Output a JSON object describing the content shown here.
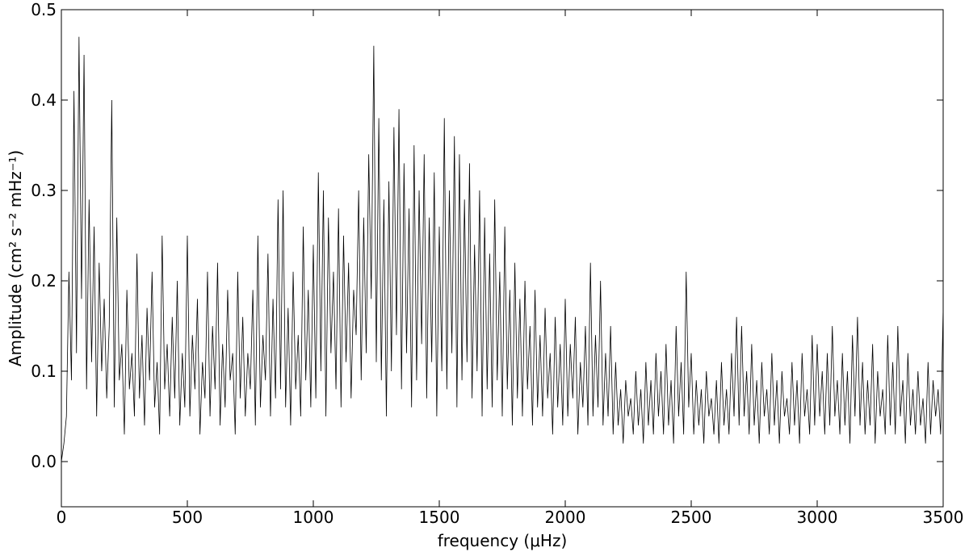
{
  "chart_data": {
    "type": "line",
    "xlabel": "frequency (μHz)",
    "ylabel": "Amplitude (cm² s⁻² mHz⁻¹)",
    "xlim": [
      0,
      3500
    ],
    "xticks": [
      0,
      500,
      1000,
      1500,
      2000,
      2500,
      3000,
      3500
    ],
    "ylim": [
      -0.05,
      0.5
    ],
    "yticks": [
      {
        "value": 0,
        "label": "0.0"
      },
      0.1,
      0.2,
      0.3,
      0.4,
      0.5
    ],
    "grid": false,
    "series": [
      {
        "color": "#000000",
        "x": [
          0,
          10,
          20,
          30,
          40,
          50,
          60,
          70,
          80,
          90,
          100,
          110,
          120,
          130,
          140,
          150,
          160,
          170,
          180,
          190,
          200,
          210,
          220,
          230,
          240,
          250,
          260,
          270,
          280,
          290,
          300,
          310,
          320,
          330,
          340,
          350,
          360,
          370,
          380,
          390,
          400,
          410,
          420,
          430,
          440,
          450,
          460,
          470,
          480,
          490,
          500,
          510,
          520,
          530,
          540,
          550,
          560,
          570,
          580,
          590,
          600,
          610,
          620,
          630,
          640,
          650,
          660,
          670,
          680,
          690,
          700,
          710,
          720,
          730,
          740,
          750,
          760,
          770,
          780,
          790,
          800,
          810,
          820,
          830,
          840,
          850,
          860,
          870,
          880,
          890,
          900,
          910,
          920,
          930,
          940,
          950,
          960,
          970,
          980,
          990,
          1000,
          1010,
          1020,
          1030,
          1040,
          1050,
          1060,
          1070,
          1080,
          1090,
          1100,
          1110,
          1120,
          1130,
          1140,
          1150,
          1160,
          1170,
          1180,
          1190,
          1200,
          1210,
          1220,
          1230,
          1240,
          1250,
          1260,
          1270,
          1280,
          1290,
          1300,
          1310,
          1320,
          1330,
          1340,
          1350,
          1360,
          1370,
          1380,
          1390,
          1400,
          1410,
          1420,
          1430,
          1440,
          1450,
          1460,
          1470,
          1480,
          1490,
          1500,
          1510,
          1520,
          1530,
          1540,
          1550,
          1560,
          1570,
          1580,
          1590,
          1600,
          1610,
          1620,
          1630,
          1640,
          1650,
          1660,
          1670,
          1680,
          1690,
          1700,
          1710,
          1720,
          1730,
          1740,
          1750,
          1760,
          1770,
          1780,
          1790,
          1800,
          1810,
          1820,
          1830,
          1840,
          1850,
          1860,
          1870,
          1880,
          1890,
          1900,
          1910,
          1920,
          1930,
          1940,
          1950,
          1960,
          1970,
          1980,
          1990,
          2000,
          2010,
          2020,
          2030,
          2040,
          2050,
          2060,
          2070,
          2080,
          2090,
          2100,
          2110,
          2120,
          2130,
          2140,
          2150,
          2160,
          2170,
          2180,
          2190,
          2200,
          2210,
          2220,
          2230,
          2240,
          2250,
          2260,
          2270,
          2280,
          2290,
          2300,
          2310,
          2320,
          2330,
          2340,
          2350,
          2360,
          2370,
          2380,
          2390,
          2400,
          2410,
          2420,
          2430,
          2440,
          2450,
          2460,
          2470,
          2480,
          2490,
          2500,
          2510,
          2520,
          2530,
          2540,
          2550,
          2560,
          2570,
          2580,
          2590,
          2600,
          2610,
          2620,
          2630,
          2640,
          2650,
          2660,
          2670,
          2680,
          2690,
          2700,
          2710,
          2720,
          2730,
          2740,
          2750,
          2760,
          2770,
          2780,
          2790,
          2800,
          2810,
          2820,
          2830,
          2840,
          2850,
          2860,
          2870,
          2880,
          2890,
          2900,
          2910,
          2920,
          2930,
          2940,
          2950,
          2960,
          2970,
          2980,
          2990,
          3000,
          3010,
          3020,
          3030,
          3040,
          3050,
          3060,
          3070,
          3080,
          3090,
          3100,
          3110,
          3120,
          3130,
          3140,
          3150,
          3160,
          3170,
          3180,
          3190,
          3200,
          3210,
          3220,
          3230,
          3240,
          3250,
          3260,
          3270,
          3280,
          3290,
          3300,
          3310,
          3320,
          3330,
          3340,
          3350,
          3360,
          3370,
          3380,
          3390,
          3400,
          3410,
          3420,
          3430,
          3440,
          3450,
          3460,
          3470,
          3480,
          3490,
          3500
        ],
        "values": [
          0.0,
          0.02,
          0.05,
          0.21,
          0.09,
          0.41,
          0.12,
          0.47,
          0.18,
          0.45,
          0.08,
          0.29,
          0.11,
          0.26,
          0.05,
          0.22,
          0.1,
          0.18,
          0.07,
          0.15,
          0.4,
          0.06,
          0.27,
          0.09,
          0.13,
          0.03,
          0.19,
          0.08,
          0.12,
          0.05,
          0.23,
          0.07,
          0.14,
          0.04,
          0.17,
          0.09,
          0.21,
          0.06,
          0.11,
          0.03,
          0.25,
          0.08,
          0.13,
          0.05,
          0.16,
          0.07,
          0.2,
          0.04,
          0.12,
          0.06,
          0.25,
          0.05,
          0.14,
          0.08,
          0.18,
          0.03,
          0.11,
          0.07,
          0.21,
          0.05,
          0.15,
          0.08,
          0.22,
          0.04,
          0.13,
          0.06,
          0.19,
          0.09,
          0.12,
          0.03,
          0.21,
          0.07,
          0.16,
          0.05,
          0.12,
          0.08,
          0.19,
          0.04,
          0.25,
          0.06,
          0.14,
          0.09,
          0.23,
          0.05,
          0.18,
          0.07,
          0.29,
          0.08,
          0.3,
          0.06,
          0.17,
          0.04,
          0.21,
          0.08,
          0.14,
          0.05,
          0.26,
          0.09,
          0.19,
          0.06,
          0.24,
          0.07,
          0.32,
          0.1,
          0.3,
          0.05,
          0.27,
          0.12,
          0.21,
          0.08,
          0.28,
          0.06,
          0.25,
          0.11,
          0.22,
          0.07,
          0.19,
          0.14,
          0.3,
          0.09,
          0.27,
          0.12,
          0.34,
          0.18,
          0.46,
          0.11,
          0.38,
          0.09,
          0.29,
          0.05,
          0.31,
          0.1,
          0.37,
          0.14,
          0.39,
          0.08,
          0.33,
          0.12,
          0.28,
          0.06,
          0.35,
          0.09,
          0.3,
          0.13,
          0.34,
          0.07,
          0.27,
          0.11,
          0.32,
          0.05,
          0.26,
          0.1,
          0.38,
          0.08,
          0.3,
          0.12,
          0.36,
          0.06,
          0.34,
          0.09,
          0.29,
          0.11,
          0.33,
          0.07,
          0.24,
          0.1,
          0.3,
          0.05,
          0.27,
          0.08,
          0.23,
          0.06,
          0.29,
          0.09,
          0.21,
          0.05,
          0.26,
          0.08,
          0.19,
          0.04,
          0.22,
          0.07,
          0.18,
          0.05,
          0.2,
          0.08,
          0.15,
          0.04,
          0.19,
          0.06,
          0.14,
          0.05,
          0.17,
          0.07,
          0.12,
          0.03,
          0.16,
          0.06,
          0.13,
          0.04,
          0.18,
          0.05,
          0.13,
          0.07,
          0.16,
          0.03,
          0.11,
          0.06,
          0.15,
          0.04,
          0.22,
          0.05,
          0.14,
          0.06,
          0.2,
          0.04,
          0.12,
          0.05,
          0.15,
          0.03,
          0.11,
          0.04,
          0.08,
          0.02,
          0.09,
          0.05,
          0.07,
          0.03,
          0.1,
          0.04,
          0.08,
          0.02,
          0.11,
          0.04,
          0.09,
          0.03,
          0.12,
          0.05,
          0.1,
          0.03,
          0.13,
          0.04,
          0.09,
          0.02,
          0.15,
          0.05,
          0.11,
          0.03,
          0.21,
          0.06,
          0.12,
          0.03,
          0.09,
          0.04,
          0.08,
          0.02,
          0.1,
          0.05,
          0.07,
          0.03,
          0.09,
          0.02,
          0.11,
          0.04,
          0.08,
          0.03,
          0.12,
          0.05,
          0.16,
          0.04,
          0.15,
          0.05,
          0.1,
          0.03,
          0.13,
          0.04,
          0.09,
          0.02,
          0.11,
          0.05,
          0.08,
          0.03,
          0.12,
          0.04,
          0.09,
          0.02,
          0.1,
          0.05,
          0.07,
          0.03,
          0.11,
          0.04,
          0.09,
          0.02,
          0.12,
          0.05,
          0.08,
          0.03,
          0.14,
          0.04,
          0.13,
          0.05,
          0.1,
          0.03,
          0.12,
          0.04,
          0.15,
          0.05,
          0.09,
          0.03,
          0.12,
          0.04,
          0.1,
          0.02,
          0.14,
          0.05,
          0.16,
          0.04,
          0.11,
          0.03,
          0.09,
          0.04,
          0.13,
          0.02,
          0.1,
          0.05,
          0.08,
          0.03,
          0.14,
          0.04,
          0.11,
          0.03,
          0.15,
          0.05,
          0.09,
          0.02,
          0.12,
          0.04,
          0.08,
          0.03,
          0.1,
          0.04,
          0.07,
          0.02,
          0.11,
          0.03,
          0.09,
          0.05,
          0.08,
          0.03,
          0.17
        ]
      }
    ]
  }
}
